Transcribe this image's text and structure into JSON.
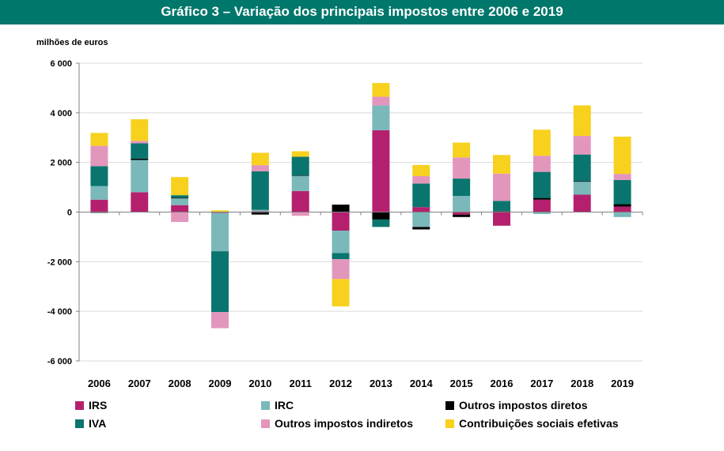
{
  "header": {
    "title": "Gráfico 3 – Variação dos principais impostos entre 2006 e 2019"
  },
  "chart_data": {
    "type": "stacked-bar",
    "title": "Gráfico 3 – Variação dos principais impostos entre 2006 e 2019",
    "ylabel": "milhões de euros",
    "xlabel": "",
    "ylim": [
      -6000,
      6000
    ],
    "yticks": [
      6000,
      4000,
      2000,
      0,
      -2000,
      -4000,
      -6000
    ],
    "ytick_labels": [
      "6 000",
      "4 000",
      "2 000",
      "0",
      "-2 000",
      "-4 000",
      "-6 000"
    ],
    "grid": true,
    "legend_position": "bottom",
    "categories": [
      "2006",
      "2007",
      "2008",
      "2009",
      "2010",
      "2011",
      "2012",
      "2013",
      "2014",
      "2015",
      "2016",
      "2017",
      "2018",
      "2019"
    ],
    "series": [
      {
        "name": "IRS",
        "color": "#b5206e",
        "values": [
          500,
          800,
          280,
          -30,
          30,
          850,
          -750,
          3300,
          200,
          -100,
          -550,
          500,
          700,
          220
        ]
      },
      {
        "name": "IRC",
        "color": "#7ab8ba",
        "values": [
          550,
          1300,
          270,
          -1550,
          60,
          620,
          -900,
          1000,
          -600,
          650,
          30,
          -80,
          520,
          -200
        ]
      },
      {
        "name": "Outros impostos diretos",
        "color": "#000000",
        "values": [
          -30,
          50,
          30,
          0,
          -100,
          10,
          300,
          -300,
          -100,
          -100,
          20,
          70,
          20,
          100
        ]
      },
      {
        "name": "IVA",
        "color": "#0a756e",
        "values": [
          800,
          620,
          100,
          -2450,
          1550,
          750,
          -250,
          -300,
          950,
          700,
          400,
          1050,
          1080,
          970
        ]
      },
      {
        "name": "Outros impostos indiretos",
        "color": "#e396bc",
        "values": [
          820,
          100,
          -400,
          -650,
          250,
          -150,
          -800,
          350,
          300,
          850,
          1100,
          650,
          750,
          250
        ]
      },
      {
        "name": "Contribuições sociais efetivas",
        "color": "#f7d11e",
        "values": [
          520,
          870,
          730,
          70,
          500,
          220,
          -1100,
          550,
          450,
          600,
          750,
          1050,
          1230,
          1500
        ]
      }
    ]
  }
}
